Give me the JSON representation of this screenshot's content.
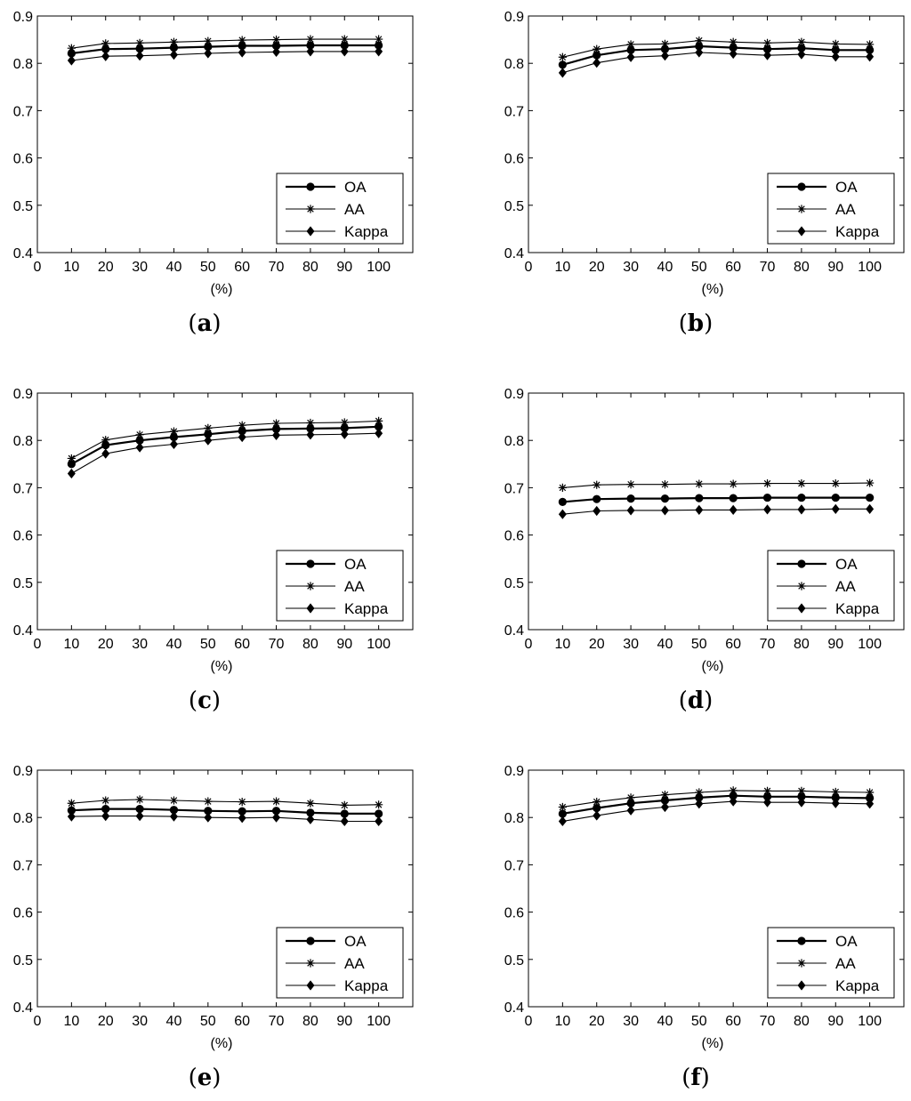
{
  "chart_data": [
    {
      "type": "line",
      "panel_label": "a",
      "xlabel": "(%)",
      "ylabel": "",
      "xlim": [
        0,
        110
      ],
      "ylim": [
        0.4,
        0.9
      ],
      "xticks": [
        "0",
        "10",
        "20",
        "30",
        "40",
        "50",
        "60",
        "70",
        "80",
        "90",
        "100"
      ],
      "yticks": [
        "0.4",
        "0.5",
        "0.6",
        "0.7",
        "0.8",
        "0.9"
      ],
      "legend_position": "bottom-right",
      "x": [
        10,
        20,
        30,
        40,
        50,
        60,
        70,
        80,
        90,
        100
      ],
      "series": [
        {
          "name": "OA",
          "marker": "circle",
          "values": [
            0.821,
            0.83,
            0.831,
            0.833,
            0.835,
            0.837,
            0.837,
            0.838,
            0.838,
            0.838
          ]
        },
        {
          "name": "AA",
          "marker": "star",
          "values": [
            0.832,
            0.842,
            0.843,
            0.845,
            0.847,
            0.849,
            0.85,
            0.851,
            0.851,
            0.851
          ]
        },
        {
          "name": "Kappa",
          "marker": "diamond",
          "values": [
            0.806,
            0.815,
            0.816,
            0.818,
            0.821,
            0.823,
            0.824,
            0.825,
            0.825,
            0.825
          ]
        }
      ]
    },
    {
      "type": "line",
      "panel_label": "b",
      "xlabel": "(%)",
      "ylabel": "",
      "xlim": [
        0,
        110
      ],
      "ylim": [
        0.4,
        0.9
      ],
      "xticks": [
        "0",
        "10",
        "20",
        "30",
        "40",
        "50",
        "60",
        "70",
        "80",
        "90",
        "100"
      ],
      "yticks": [
        "0.4",
        "0.5",
        "0.6",
        "0.7",
        "0.8",
        "0.9"
      ],
      "legend_position": "bottom-right",
      "x": [
        10,
        20,
        30,
        40,
        50,
        60,
        70,
        80,
        90,
        100
      ],
      "series": [
        {
          "name": "OA",
          "marker": "circle",
          "values": [
            0.797,
            0.817,
            0.828,
            0.83,
            0.836,
            0.833,
            0.83,
            0.832,
            0.828,
            0.828
          ]
        },
        {
          "name": "AA",
          "marker": "star",
          "values": [
            0.813,
            0.83,
            0.84,
            0.841,
            0.848,
            0.845,
            0.843,
            0.845,
            0.841,
            0.84
          ]
        },
        {
          "name": "Kappa",
          "marker": "diamond",
          "values": [
            0.78,
            0.801,
            0.813,
            0.816,
            0.823,
            0.82,
            0.817,
            0.819,
            0.814,
            0.814
          ]
        }
      ]
    },
    {
      "type": "line",
      "panel_label": "c",
      "xlabel": "(%)",
      "ylabel": "",
      "xlim": [
        0,
        110
      ],
      "ylim": [
        0.4,
        0.9
      ],
      "xticks": [
        "0",
        "10",
        "20",
        "30",
        "40",
        "50",
        "60",
        "70",
        "80",
        "90",
        "100"
      ],
      "yticks": [
        "0.4",
        "0.5",
        "0.6",
        "0.7",
        "0.8",
        "0.9"
      ],
      "legend_position": "bottom-right",
      "x": [
        10,
        20,
        30,
        40,
        50,
        60,
        70,
        80,
        90,
        100
      ],
      "series": [
        {
          "name": "OA",
          "marker": "circle",
          "values": [
            0.75,
            0.79,
            0.8,
            0.807,
            0.813,
            0.82,
            0.824,
            0.825,
            0.826,
            0.829
          ]
        },
        {
          "name": "AA",
          "marker": "star",
          "values": [
            0.762,
            0.801,
            0.812,
            0.819,
            0.826,
            0.832,
            0.836,
            0.837,
            0.838,
            0.841
          ]
        },
        {
          "name": "Kappa",
          "marker": "diamond",
          "values": [
            0.73,
            0.772,
            0.785,
            0.792,
            0.8,
            0.807,
            0.811,
            0.812,
            0.813,
            0.815
          ]
        }
      ]
    },
    {
      "type": "line",
      "panel_label": "d",
      "xlabel": "(%)",
      "ylabel": "",
      "xlim": [
        0,
        110
      ],
      "ylim": [
        0.4,
        0.9
      ],
      "xticks": [
        "0",
        "10",
        "20",
        "30",
        "40",
        "50",
        "60",
        "70",
        "80",
        "90",
        "100"
      ],
      "yticks": [
        "0.4",
        "0.5",
        "0.6",
        "0.7",
        "0.8",
        "0.9"
      ],
      "legend_position": "bottom-right",
      "x": [
        10,
        20,
        30,
        40,
        50,
        60,
        70,
        80,
        90,
        100
      ],
      "series": [
        {
          "name": "OA",
          "marker": "circle",
          "values": [
            0.67,
            0.676,
            0.677,
            0.677,
            0.678,
            0.678,
            0.679,
            0.679,
            0.679,
            0.679
          ]
        },
        {
          "name": "AA",
          "marker": "star",
          "values": [
            0.7,
            0.706,
            0.707,
            0.707,
            0.708,
            0.708,
            0.709,
            0.709,
            0.709,
            0.71
          ]
        },
        {
          "name": "Kappa",
          "marker": "diamond",
          "values": [
            0.644,
            0.651,
            0.652,
            0.652,
            0.653,
            0.653,
            0.654,
            0.654,
            0.655,
            0.655
          ]
        }
      ]
    },
    {
      "type": "line",
      "panel_label": "e",
      "xlabel": "(%)",
      "ylabel": "",
      "xlim": [
        0,
        110
      ],
      "ylim": [
        0.4,
        0.9
      ],
      "xticks": [
        "0",
        "10",
        "20",
        "30",
        "40",
        "50",
        "60",
        "70",
        "80",
        "90",
        "100"
      ],
      "yticks": [
        "0.4",
        "0.5",
        "0.6",
        "0.7",
        "0.8",
        "0.9"
      ],
      "legend_position": "bottom-right",
      "x": [
        10,
        20,
        30,
        40,
        50,
        60,
        70,
        80,
        90,
        100
      ],
      "series": [
        {
          "name": "OA",
          "marker": "circle",
          "values": [
            0.815,
            0.818,
            0.818,
            0.816,
            0.814,
            0.813,
            0.814,
            0.81,
            0.808,
            0.808
          ]
        },
        {
          "name": "AA",
          "marker": "star",
          "values": [
            0.83,
            0.836,
            0.838,
            0.836,
            0.834,
            0.833,
            0.834,
            0.83,
            0.826,
            0.827
          ]
        },
        {
          "name": "Kappa",
          "marker": "diamond",
          "values": [
            0.802,
            0.803,
            0.803,
            0.802,
            0.8,
            0.799,
            0.8,
            0.796,
            0.792,
            0.792
          ]
        }
      ]
    },
    {
      "type": "line",
      "panel_label": "f",
      "xlabel": "(%)",
      "ylabel": "",
      "xlim": [
        0,
        110
      ],
      "ylim": [
        0.4,
        0.9
      ],
      "xticks": [
        "0",
        "10",
        "20",
        "30",
        "40",
        "50",
        "60",
        "70",
        "80",
        "90",
        "100"
      ],
      "yticks": [
        "0.4",
        "0.5",
        "0.6",
        "0.7",
        "0.8",
        "0.9"
      ],
      "legend_position": "bottom-right",
      "x": [
        10,
        20,
        30,
        40,
        50,
        60,
        70,
        80,
        90,
        100
      ],
      "series": [
        {
          "name": "OA",
          "marker": "circle",
          "values": [
            0.808,
            0.82,
            0.83,
            0.836,
            0.842,
            0.846,
            0.844,
            0.844,
            0.842,
            0.841
          ]
        },
        {
          "name": "AA",
          "marker": "star",
          "values": [
            0.822,
            0.833,
            0.842,
            0.848,
            0.853,
            0.857,
            0.856,
            0.856,
            0.854,
            0.853
          ]
        },
        {
          "name": "Kappa",
          "marker": "diamond",
          "values": [
            0.792,
            0.804,
            0.815,
            0.822,
            0.829,
            0.834,
            0.832,
            0.832,
            0.83,
            0.829
          ]
        }
      ]
    }
  ]
}
